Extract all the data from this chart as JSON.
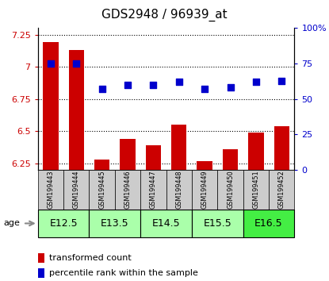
{
  "title": "GDS2948 / 96939_at",
  "samples": [
    "GSM199443",
    "GSM199444",
    "GSM199445",
    "GSM199446",
    "GSM199447",
    "GSM199448",
    "GSM199449",
    "GSM199450",
    "GSM199451",
    "GSM199452"
  ],
  "bar_values": [
    7.19,
    7.13,
    6.28,
    6.44,
    6.39,
    6.55,
    6.27,
    6.36,
    6.49,
    6.54
  ],
  "scatter_values": [
    75,
    75,
    57,
    60,
    60,
    62,
    57,
    58,
    62,
    63
  ],
  "ylim_left": [
    6.2,
    7.3
  ],
  "ylim_right": [
    0,
    100
  ],
  "yticks_left": [
    6.25,
    6.5,
    6.75,
    7.0,
    7.25
  ],
  "yticks_right": [
    0,
    25,
    50,
    75,
    100
  ],
  "ytick_labels_left": [
    "6.25",
    "6.5",
    "6.75",
    "7",
    "7.25"
  ],
  "ytick_labels_right": [
    "0",
    "25",
    "50",
    "75",
    "100%"
  ],
  "groups": [
    {
      "label": "E12.5",
      "indices": [
        0,
        1
      ],
      "color": "#aaffaa"
    },
    {
      "label": "E13.5",
      "indices": [
        2,
        3
      ],
      "color": "#aaffaa"
    },
    {
      "label": "E14.5",
      "indices": [
        4,
        5
      ],
      "color": "#aaffaa"
    },
    {
      "label": "E15.5",
      "indices": [
        6,
        7
      ],
      "color": "#aaffaa"
    },
    {
      "label": "E16.5",
      "indices": [
        8,
        9
      ],
      "color": "#44ee44"
    }
  ],
  "bar_color": "#cc0000",
  "scatter_color": "#0000cc",
  "bar_width": 0.6,
  "grid_color": "black",
  "grid_linestyle": "dotted",
  "grid_linewidth": 0.8,
  "ylabel_left_color": "#cc0000",
  "ylabel_right_color": "#0000cc",
  "legend_items": [
    {
      "label": "transformed count",
      "color": "#cc0000"
    },
    {
      "label": "percentile rank within the sample",
      "color": "#0000cc"
    }
  ],
  "age_label": "age",
  "sample_box_color": "#cccccc",
  "scatter_size": 35,
  "title_fontsize": 11,
  "tick_fontsize": 8,
  "sample_fontsize": 5.8,
  "group_fontsize": 9,
  "legend_fontsize": 8
}
